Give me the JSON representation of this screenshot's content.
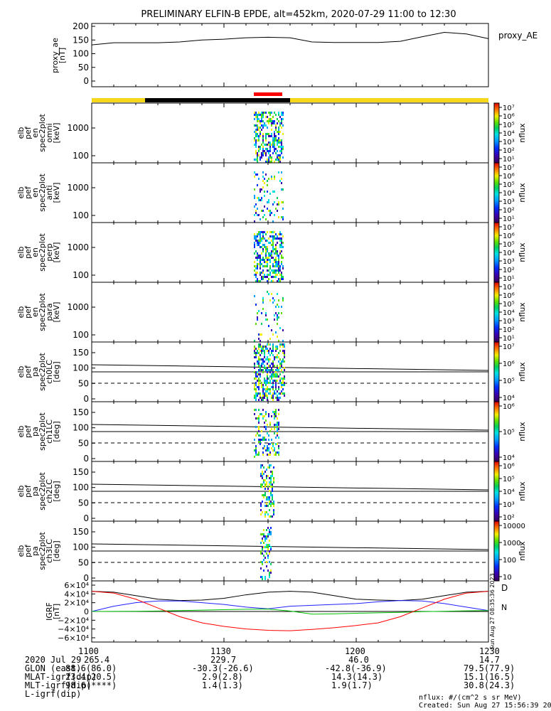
{
  "title": "PRELIMINARY ELFIN-B EPDE, alt=452km, 2020-07-29 11:00 to 12:30",
  "colors": {
    "status_yellow": "#f7d719",
    "status_black": "#000000",
    "status_red": "#ff0000",
    "bx": "#2020ff",
    "by": "#00c000",
    "bz": "#ff0000",
    "bt": "#000000"
  },
  "proxy_ae": {
    "ylabel": [
      "proxy_ae",
      "[nT]"
    ],
    "ticks": [
      "200",
      "150",
      "100",
      "50",
      "0"
    ],
    "legend": "proxy_AE"
  },
  "spec_panels": [
    {
      "ylabel": [
        "elb",
        "pef",
        "en",
        "spec2plot",
        "omni",
        "[keV]"
      ],
      "ticks": [
        "1000",
        "100"
      ],
      "cbar_ticks": [
        "10⁷",
        "10⁶",
        "10⁵",
        "10⁴",
        "10³",
        "10²",
        "10¹"
      ],
      "cbar_label": "nflux"
    },
    {
      "ylabel": [
        "elb",
        "pef",
        "en",
        "spec2plot",
        "anti",
        "[keV]"
      ],
      "ticks": [
        "1000",
        "100"
      ],
      "cbar_ticks": [
        "10⁷",
        "10⁶",
        "10⁵",
        "10⁴",
        "10³",
        "10²",
        "10¹"
      ],
      "cbar_label": "nflux"
    },
    {
      "ylabel": [
        "elb",
        "pef",
        "en",
        "spec2plot",
        "perp",
        "[keV]"
      ],
      "ticks": [
        "1000",
        "100"
      ],
      "cbar_ticks": [
        "10⁷",
        "10⁶",
        "10⁵",
        "10⁴",
        "10³",
        "10²",
        "10¹"
      ],
      "cbar_label": "nflux"
    },
    {
      "ylabel": [
        "elb",
        "pef",
        "en",
        "spec2plot",
        "para",
        "[keV]"
      ],
      "ticks": [
        "1000",
        "100"
      ],
      "cbar_ticks": [
        "10⁷",
        "10⁶",
        "10⁵",
        "10⁴",
        "10³",
        "10²",
        "10¹"
      ],
      "cbar_label": "nflux"
    }
  ],
  "pa_panels": [
    {
      "ylabel": [
        "elb",
        "pef",
        "pa",
        "spec2plot",
        "ch0LC",
        "[deg]"
      ],
      "ticks": [
        "150",
        "100",
        "50",
        "0"
      ],
      "cbar_ticks": [
        "10⁷",
        "10⁶",
        "10⁵",
        "10⁴"
      ],
      "cbar_label": "nflux"
    },
    {
      "ylabel": [
        "elb",
        "pef",
        "pa",
        "spec2plot",
        "ch1LC",
        "[deg]"
      ],
      "ticks": [
        "150",
        "100",
        "50",
        "0"
      ],
      "cbar_ticks": [
        "10⁶",
        "10⁵",
        "10⁴"
      ],
      "cbar_label": "nflux"
    },
    {
      "ylabel": [
        "elb",
        "pef",
        "pa",
        "spec2plot",
        "ch2LC",
        "[deg]"
      ],
      "ticks": [
        "150",
        "100",
        "50",
        "0"
      ],
      "cbar_ticks": [
        "10⁶",
        "10⁵",
        "10⁴",
        "10³",
        "10²"
      ],
      "cbar_label": "nflux"
    },
    {
      "ylabel": [
        "elb",
        "pef",
        "pa",
        "spec2plot",
        "ch3LC",
        "[deg]"
      ],
      "ticks": [
        "150",
        "100",
        "50",
        "0"
      ],
      "cbar_ticks": [
        "10000",
        "1000",
        "100",
        "10"
      ],
      "cbar_label": "nflux"
    }
  ],
  "igrf": {
    "ylabel": [
      "IGRF",
      "[nT]"
    ],
    "ticks": [
      "6×10⁴",
      "4×10⁴",
      "2×10⁴",
      "0",
      "−2×10⁴",
      "−4×10⁴",
      "−6×10⁴"
    ],
    "side_stamp": "Sun Aug 27 08:35:36 2023",
    "side_letters": [
      "D",
      "N"
    ]
  },
  "chart_data": [
    {
      "type": "line",
      "title": "PRELIMINARY ELFIN-B EPDE, alt=452km, 2020-07-29 11:00 to 12:30",
      "ylabel": "proxy_ae [nT]",
      "ylim": [
        0,
        200
      ],
      "series": [
        {
          "name": "proxy_AE",
          "x": [
            "11:00",
            "11:05",
            "11:10",
            "11:15",
            "11:20",
            "11:25",
            "11:30",
            "11:35",
            "11:40",
            "11:45",
            "11:50",
            "11:55",
            "12:00",
            "12:05",
            "12:10",
            "12:15",
            "12:20",
            "12:25",
            "12:30"
          ],
          "values": [
            132,
            140,
            140,
            140,
            143,
            150,
            153,
            158,
            160,
            158,
            143,
            141,
            141,
            141,
            145,
            162,
            178,
            172,
            155
          ]
        }
      ]
    },
    {
      "type": "heatmap",
      "ylabel": "elb pef en spec2plot omni [keV]",
      "yscale": "log",
      "yticks": [
        100,
        1000
      ],
      "colorbar": "nflux",
      "time_range": [
        "11:00",
        "12:30"
      ]
    },
    {
      "type": "heatmap",
      "ylabel": "elb pef en spec2plot anti [keV]",
      "yscale": "log",
      "yticks": [
        100,
        1000
      ],
      "colorbar": "nflux",
      "time_range": [
        "11:00",
        "12:30"
      ]
    },
    {
      "type": "heatmap",
      "ylabel": "elb pef en spec2plot perp [keV]",
      "yscale": "log",
      "yticks": [
        100,
        1000
      ],
      "colorbar": "nflux",
      "time_range": [
        "11:00",
        "12:30"
      ]
    },
    {
      "type": "heatmap",
      "ylabel": "elb pef en spec2plot para [keV]",
      "yscale": "log",
      "yticks": [
        100,
        1000
      ],
      "colorbar": "nflux",
      "time_range": [
        "11:00",
        "12:30"
      ]
    },
    {
      "type": "heatmap",
      "ylabel": "elb pef pa spec2plot ch0LC [deg]",
      "ylim": [
        0,
        180
      ],
      "colorbar": "nflux"
    },
    {
      "type": "heatmap",
      "ylabel": "elb pef pa spec2plot ch1LC [deg]",
      "ylim": [
        0,
        180
      ],
      "colorbar": "nflux"
    },
    {
      "type": "heatmap",
      "ylabel": "elb pef pa spec2plot ch2LC [deg]",
      "ylim": [
        0,
        180
      ],
      "colorbar": "nflux"
    },
    {
      "type": "heatmap",
      "ylabel": "elb pef pa spec2plot ch3LC [deg]",
      "ylim": [
        0,
        180
      ],
      "colorbar": "nflux"
    },
    {
      "type": "line",
      "ylabel": "IGRF [nT]",
      "ylim": [
        -60000,
        60000
      ],
      "x": [
        1100,
        1105,
        1110,
        1115,
        1120,
        1125,
        1130,
        1135,
        1140,
        1145,
        1150,
        1155,
        1200,
        1205,
        1210,
        1215,
        1220,
        1225,
        1230
      ],
      "series": [
        {
          "values": [
            46000,
            44000,
            36000,
            28000,
            25000,
            26000,
            30000,
            38000,
            44000,
            46000,
            44000,
            36000,
            28000,
            26000,
            25000,
            28000,
            36000,
            44000,
            46000
          ],
          "color": "#000000"
        },
        {
          "values": [
            0,
            12000,
            20000,
            24000,
            24000,
            20000,
            16000,
            10000,
            6000,
            12000,
            14000,
            16000,
            18000,
            22000,
            25000,
            24000,
            18000,
            10000,
            2000
          ],
          "color": "#2020ff"
        },
        {
          "values": [
            0,
            200,
            500,
            1000,
            2000,
            3000,
            4000,
            5000,
            5500,
            1000,
            -6000,
            -5500,
            -4000,
            -3000,
            -2000,
            -500,
            500,
            1500,
            2000
          ],
          "color": "#00c000"
        },
        {
          "values": [
            46000,
            42000,
            28000,
            8000,
            -12000,
            -26000,
            -34000,
            -40000,
            -43000,
            -44000,
            -41000,
            -37000,
            -32000,
            -26000,
            -12000,
            8000,
            28000,
            42000,
            46000
          ],
          "color": "#ff0000"
        }
      ]
    }
  ],
  "xlabels": [
    {
      "row": "2020 Jul 29",
      "values": [
        "1100",
        "1130",
        "1200",
        "1230"
      ]
    },
    {
      "row": "GLON (east)",
      "values": [
        "265.4",
        "229.7",
        "46.0",
        "14.7"
      ]
    },
    {
      "row": "MLAT-igrf(dip)",
      "values": [
        "88.6(86.0)",
        "-30.3(-26.6)",
        "-42.8(-36.9)",
        "79.5(77.9)"
      ]
    },
    {
      "row": "MLT-igrf(dip)",
      "values": [
        "23.4(20.5)",
        "2.9(2.8)",
        "14.3(14.3)",
        "15.1(16.5)"
      ]
    },
    {
      "row": "L-igrf(dip)",
      "values": [
        "98.6(****)",
        "1.4(1.3)",
        "1.9(1.7)",
        "30.8(24.3)"
      ]
    }
  ],
  "footer": {
    "units": "nflux: #/(cm^2 s sr MeV)",
    "created": "Created: Sun Aug 27 15:56:39 2023"
  }
}
